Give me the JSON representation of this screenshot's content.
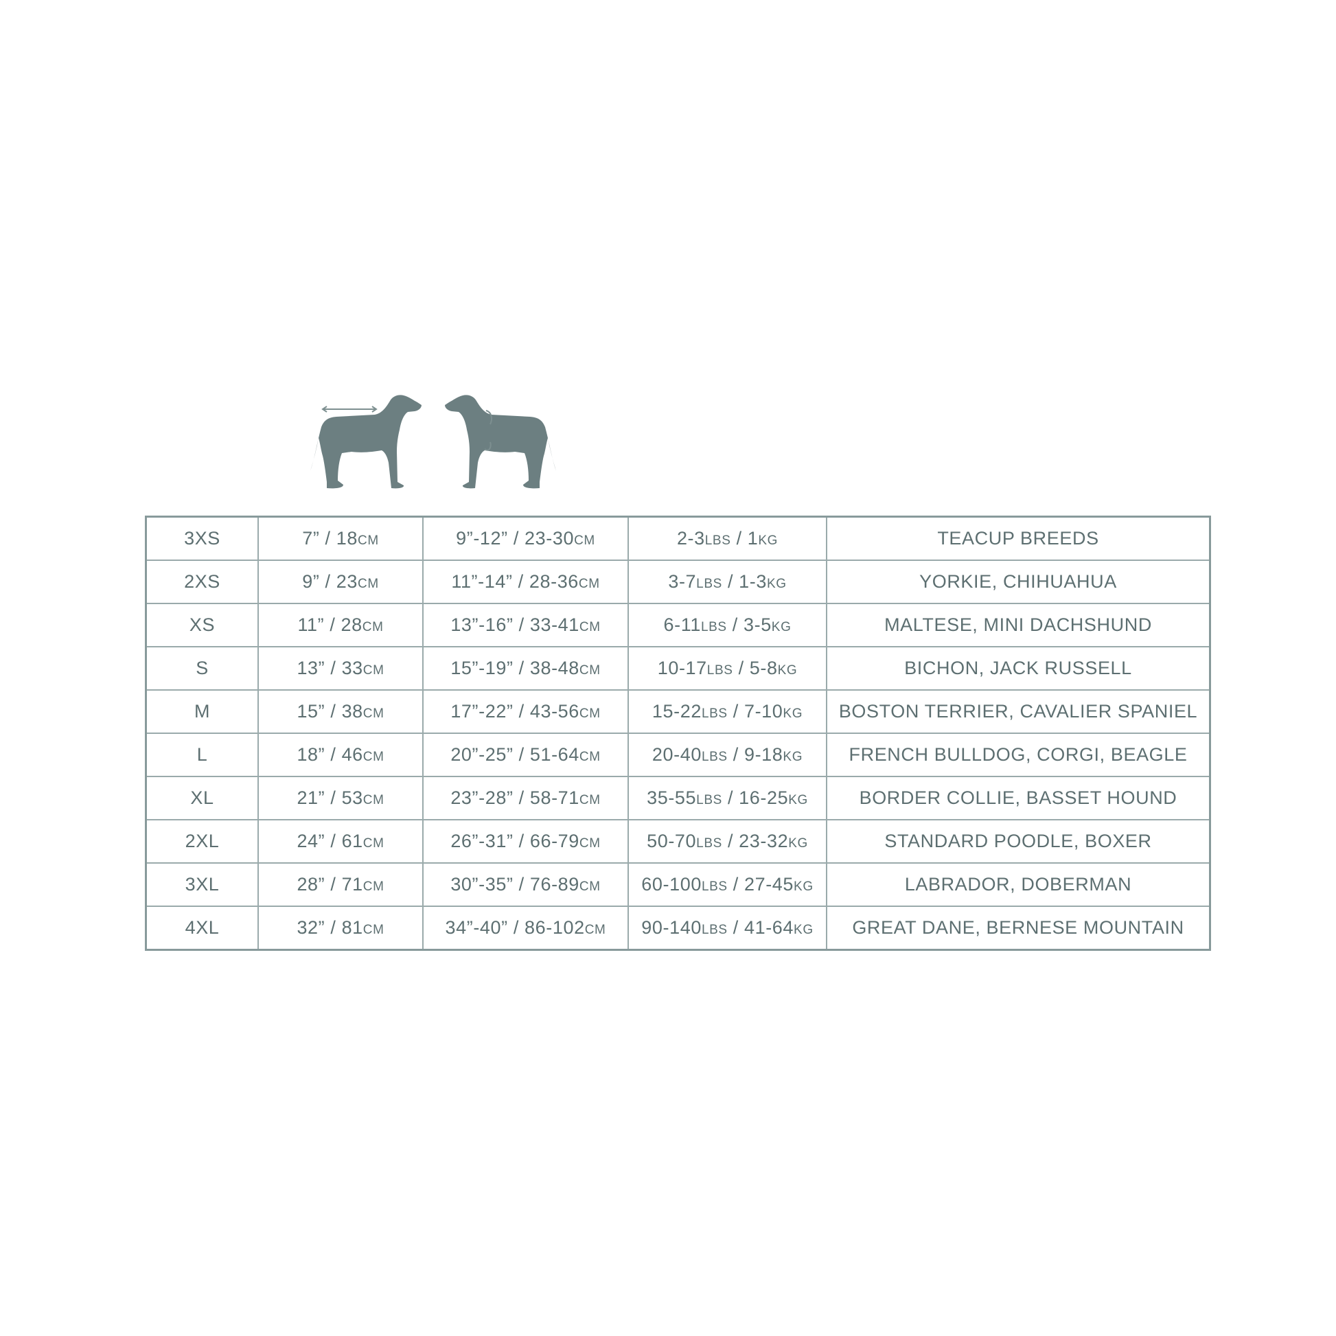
{
  "colors": {
    "ink": "#5d6f71",
    "silhouette": "#6c7f81",
    "border": "#9aaaab"
  },
  "icons": [
    "dog-back-length-icon",
    "dog-neck-chest-girth-icon"
  ],
  "rows": [
    {
      "size": "3XS",
      "back": "7” / 18cm",
      "chest": "9”-12” / 23-30cm",
      "weight": "2-3lbs / 1kg",
      "breeds": "TEACUP BREEDS"
    },
    {
      "size": "2XS",
      "back": "9” / 23cm",
      "chest": "11”-14” / 28-36cm",
      "weight": "3-7lbs / 1-3kg",
      "breeds": "YORKIE, CHIHUAHUA"
    },
    {
      "size": "XS",
      "back": "11” / 28cm",
      "chest": "13”-16” / 33-41cm",
      "weight": "6-11lbs / 3-5kg",
      "breeds": "MALTESE, MINI DACHSHUND"
    },
    {
      "size": "S",
      "back": "13” / 33cm",
      "chest": "15”-19” / 38-48cm",
      "weight": "10-17lbs / 5-8kg",
      "breeds": "BICHON, JACK RUSSELL"
    },
    {
      "size": "M",
      "back": "15” / 38cm",
      "chest": "17”-22” / 43-56cm",
      "weight": "15-22lbs / 7-10kg",
      "breeds": "BOSTON TERRIER, CAVALIER SPANIEL"
    },
    {
      "size": "L",
      "back": "18” / 46cm",
      "chest": "20”-25” / 51-64cm",
      "weight": "20-40lbs / 9-18kg",
      "breeds": "FRENCH BULLDOG, CORGI, BEAGLE"
    },
    {
      "size": "XL",
      "back": "21” / 53cm",
      "chest": "23”-28” / 58-71cm",
      "weight": "35-55lbs / 16-25kg",
      "breeds": "BORDER COLLIE, BASSET HOUND"
    },
    {
      "size": "2XL",
      "back": "24” / 61cm",
      "chest": "26”-31” / 66-79cm",
      "weight": "50-70lbs / 23-32kg",
      "breeds": "STANDARD POODLE, BOXER"
    },
    {
      "size": "3XL",
      "back": "28” / 71cm",
      "chest": "30”-35” / 76-89cm",
      "weight": "60-100lbs / 27-45kg",
      "breeds": "LABRADOR, DOBERMAN"
    },
    {
      "size": "4XL",
      "back": "32” / 81cm",
      "chest": "34”-40” / 86-102cm",
      "weight": "90-140lbs / 41-64kg",
      "breeds": "GREAT DANE, BERNESE MOUNTAIN"
    }
  ]
}
